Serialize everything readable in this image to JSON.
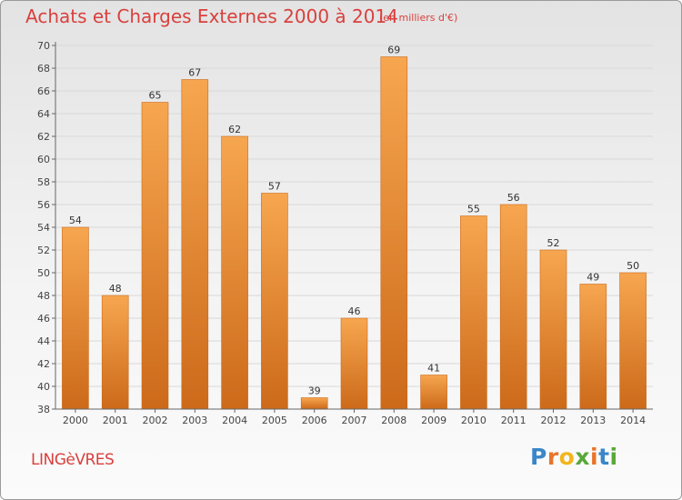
{
  "header": {
    "title": "Achats et Charges Externes 2000 à 2014",
    "subtitle": "(en milliers d'€)"
  },
  "footer": {
    "commune": "LINGèVRES",
    "brand_letters": [
      "P",
      "r",
      "o",
      "x",
      "i",
      "t",
      "i"
    ],
    "brand_colors": [
      "#3a86c8",
      "#e8742a",
      "#f2b51c",
      "#5aa839",
      "#e8742a",
      "#3a86c8",
      "#5aa839"
    ]
  },
  "colors": {
    "bar": "#f0922e",
    "bar_light": "#f7a650",
    "bar_dark": "#cc6a1a",
    "text": "#d9403d"
  },
  "chart_data": {
    "type": "bar",
    "title": "Achats et Charges Externes 2000 à 2014",
    "subtitle": "(en milliers d'€)",
    "categories": [
      "2000",
      "2001",
      "2002",
      "2003",
      "2004",
      "2005",
      "2006",
      "2007",
      "2008",
      "2009",
      "2010",
      "2011",
      "2012",
      "2013",
      "2014"
    ],
    "values": [
      54,
      48,
      65,
      67,
      62,
      57,
      39,
      46,
      69,
      41,
      55,
      56,
      52,
      49,
      50
    ],
    "ylim": [
      38,
      70
    ],
    "yticks": [
      38,
      40,
      42,
      44,
      46,
      48,
      50,
      52,
      54,
      56,
      58,
      60,
      62,
      64,
      66,
      68,
      70
    ],
    "grid": true
  }
}
